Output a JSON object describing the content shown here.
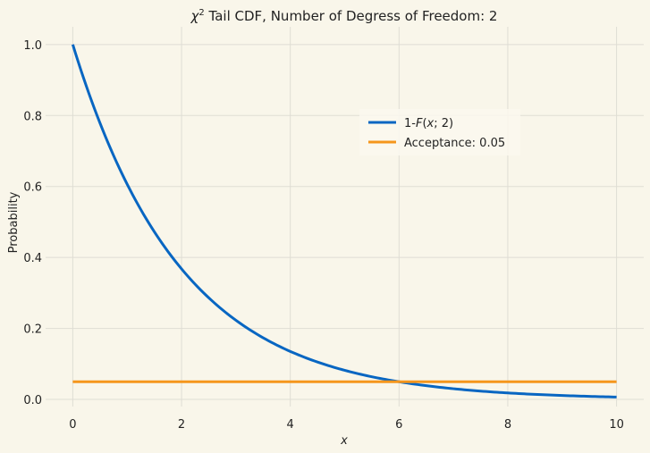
{
  "chart_data": {
    "type": "line",
    "title_prefix": "χ",
    "title_sup": "2",
    "title_rest": " Tail CDF, Number of Degress of Freedom: 2",
    "xlabel": "x",
    "ylabel": "Probability",
    "xlim": [
      -0.5,
      10.5
    ],
    "ylim": [
      -0.02,
      1.05
    ],
    "xticks": [
      0,
      2,
      4,
      6,
      8,
      10
    ],
    "yticks": [
      0.0,
      0.2,
      0.4,
      0.6,
      0.8,
      1.0
    ],
    "ytick_labels": [
      "0.0",
      "0.2",
      "0.4",
      "0.6",
      "0.8",
      "1.0"
    ],
    "grid": true,
    "legend_position": "upper-right",
    "series": [
      {
        "name": "1-F(x; 2)",
        "color": "#0866c2",
        "x": [
          0,
          0.25,
          0.5,
          0.75,
          1,
          1.25,
          1.5,
          1.75,
          2,
          2.5,
          3,
          3.5,
          4,
          4.5,
          5,
          5.5,
          6,
          6.5,
          7,
          7.5,
          8,
          8.5,
          9,
          9.5,
          10
        ],
        "y": [
          1.0,
          0.8825,
          0.7788,
          0.6873,
          0.6065,
          0.5353,
          0.4724,
          0.4169,
          0.3679,
          0.2865,
          0.2231,
          0.1738,
          0.1353,
          0.1054,
          0.0821,
          0.0639,
          0.0498,
          0.0388,
          0.0302,
          0.0235,
          0.0183,
          0.0143,
          0.0111,
          0.0087,
          0.0067
        ]
      },
      {
        "name": "Acceptance: 0.05",
        "color": "#f5961c",
        "x": [
          0,
          10
        ],
        "y": [
          0.05,
          0.05
        ]
      }
    ],
    "legend": {
      "entry1_prefix": "1-",
      "entry1_F": "F",
      "entry1_open": "(",
      "entry1_x": "x",
      "entry1_rest": "; 2)",
      "entry2": "Acceptance: 0.05"
    }
  }
}
